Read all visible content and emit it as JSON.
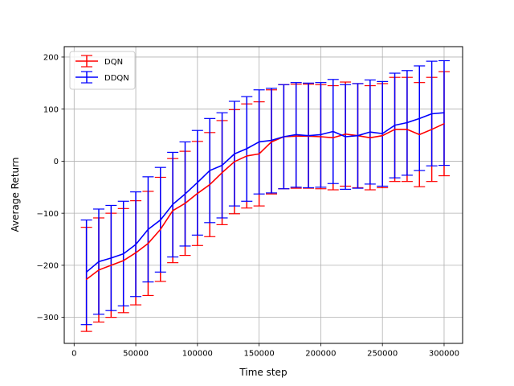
{
  "chart_data": {
    "type": "line",
    "xlabel": "Time step",
    "ylabel": "Average Return",
    "xlim": [
      -8000,
      315000
    ],
    "ylim": [
      -350,
      220
    ],
    "xticks": [
      0,
      50000,
      100000,
      150000,
      200000,
      250000,
      300000
    ],
    "xtick_labels": [
      "0",
      "50000",
      "100000",
      "150000",
      "200000",
      "250000",
      "300000"
    ],
    "yticks": [
      -300,
      -200,
      -100,
      0,
      100,
      200
    ],
    "ytick_labels": [
      "−300",
      "−200",
      "−100",
      "0",
      "100",
      "200"
    ],
    "grid": true,
    "legend_position": "top-left",
    "x": [
      10000,
      20000,
      30000,
      40000,
      50000,
      60000,
      70000,
      80000,
      90000,
      100000,
      110000,
      120000,
      130000,
      140000,
      150000,
      160000,
      170000,
      180000,
      190000,
      200000,
      210000,
      220000,
      230000,
      240000,
      250000,
      260000,
      270000,
      280000,
      290000,
      300000
    ],
    "series": [
      {
        "name": "DQN",
        "color": "#ff0000",
        "values": [
          -227,
          -209,
          -200,
          -191,
          -176,
          -158,
          -131,
          -95,
          -81,
          -62,
          -45,
          -22,
          -1,
          10,
          14,
          37,
          47,
          48,
          48,
          47,
          45,
          52,
          49,
          45,
          49,
          61,
          61,
          51,
          61,
          72
        ],
        "err_lower": [
          -327,
          -309,
          -300,
          -291,
          -276,
          -258,
          -231,
          -195,
          -181,
          -162,
          -145,
          -122,
          -101,
          -90,
          -86,
          -63,
          -53,
          -52,
          -52,
          -53,
          -55,
          -48,
          -51,
          -55,
          -51,
          -39,
          -39,
          -49,
          -39,
          -28
        ],
        "err_upper": [
          -127,
          -109,
          -100,
          -91,
          -76,
          -58,
          -31,
          5,
          19,
          38,
          55,
          78,
          99,
          110,
          114,
          137,
          147,
          148,
          148,
          147,
          145,
          152,
          149,
          145,
          149,
          161,
          161,
          151,
          161,
          172
        ]
      },
      {
        "name": "DDQN",
        "color": "#0000ff",
        "values": [
          -213,
          -193,
          -186,
          -178,
          -160,
          -131,
          -113,
          -83,
          -63,
          -41,
          -18,
          -8,
          14,
          24,
          37,
          40,
          47,
          51,
          49,
          51,
          57,
          47,
          49,
          56,
          53,
          69,
          74,
          82,
          91,
          93
        ],
        "err_lower": [
          -314,
          -294,
          -287,
          -278,
          -260,
          -232,
          -213,
          -184,
          -163,
          -142,
          -118,
          -109,
          -86,
          -77,
          -63,
          -61,
          -53,
          -50,
          -51,
          -50,
          -43,
          -54,
          -52,
          -44,
          -48,
          -32,
          -27,
          -18,
          -9,
          -8
        ],
        "err_upper": [
          -113,
          -92,
          -85,
          -77,
          -59,
          -30,
          -12,
          17,
          37,
          59,
          82,
          93,
          115,
          124,
          137,
          140,
          147,
          151,
          150,
          151,
          157,
          147,
          149,
          156,
          153,
          169,
          174,
          183,
          192,
          193
        ]
      }
    ]
  }
}
